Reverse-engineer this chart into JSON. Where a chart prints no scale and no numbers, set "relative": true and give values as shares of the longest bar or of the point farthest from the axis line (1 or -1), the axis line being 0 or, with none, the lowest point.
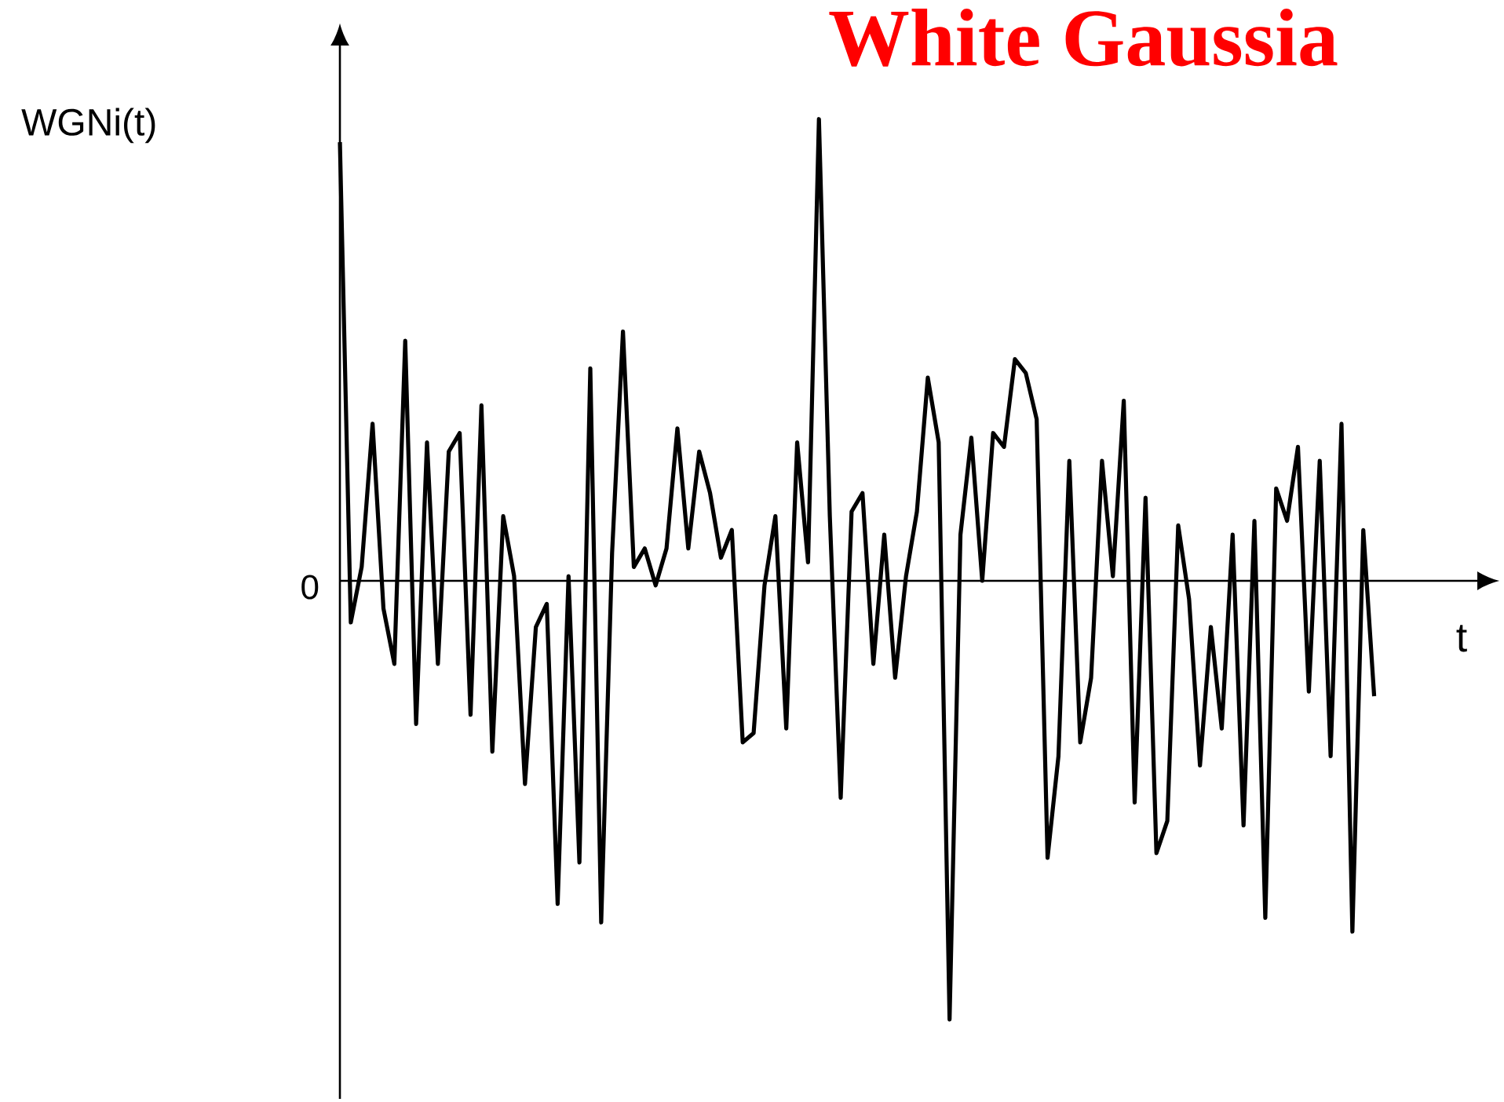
{
  "chart_data": {
    "type": "line",
    "title": "White Gaussia",
    "xlabel": "t",
    "ylabel": "WGNi(t)",
    "relative": true,
    "annotations": [
      "0"
    ],
    "categories": [
      null,
      null,
      null,
      null,
      null,
      null,
      null,
      null,
      null,
      null,
      null,
      null,
      null,
      null,
      null,
      null,
      null,
      null,
      null,
      null,
      null,
      null,
      null,
      null,
      null,
      null,
      null,
      null,
      null,
      null,
      null,
      null,
      null,
      null,
      null,
      null,
      null,
      null,
      null,
      null,
      null,
      null,
      null,
      null,
      null,
      null,
      null,
      null,
      null,
      null,
      null,
      null,
      null,
      null,
      null,
      null,
      null,
      null,
      null,
      null,
      null,
      null,
      null,
      null,
      null,
      null,
      null,
      null,
      null,
      null,
      null,
      null,
      null,
      null,
      null,
      null,
      null,
      null,
      null,
      null,
      null,
      null,
      null,
      null,
      null,
      null,
      null,
      null,
      null,
      null,
      null,
      null,
      null,
      null,
      null,
      null
    ],
    "series": [
      {
        "color": "#000000",
        "values": [
          0.95,
          -0.09,
          0.03,
          0.34,
          -0.06,
          -0.18,
          0.52,
          -0.31,
          0.3,
          -0.18,
          0.28,
          0.32,
          -0.29,
          0.38,
          -0.37,
          0.14,
          0.01,
          -0.44,
          -0.1,
          -0.05,
          -0.7,
          0.01,
          -0.61,
          0.46,
          -0.74,
          0.06,
          0.54,
          0.03,
          0.07,
          -0.01,
          0.07,
          0.33,
          0.07,
          0.28,
          0.19,
          0.05,
          0.11,
          -0.35,
          -0.33,
          -0.01,
          0.14,
          -0.32,
          0.3,
          0.04,
          1.0,
          0.14,
          -0.47,
          0.15,
          0.19,
          -0.18,
          0.1,
          -0.21,
          0.01,
          0.15,
          0.44,
          0.3,
          -0.95,
          0.1,
          0.31,
          0.0,
          0.32,
          0.29,
          0.48,
          0.45,
          0.35,
          -0.6,
          -0.38,
          0.26,
          -0.35,
          -0.21,
          0.26,
          0.01,
          0.39,
          -0.48,
          0.18,
          -0.59,
          -0.52,
          0.12,
          -0.04,
          -0.4,
          -0.1,
          -0.32,
          0.1,
          -0.53,
          0.13,
          -0.73,
          0.2,
          0.13,
          0.29,
          -0.24,
          0.26,
          -0.38,
          0.34,
          -0.76,
          0.11,
          -0.25
        ]
      }
    ],
    "marker": "none",
    "line_style": "solid"
  }
}
